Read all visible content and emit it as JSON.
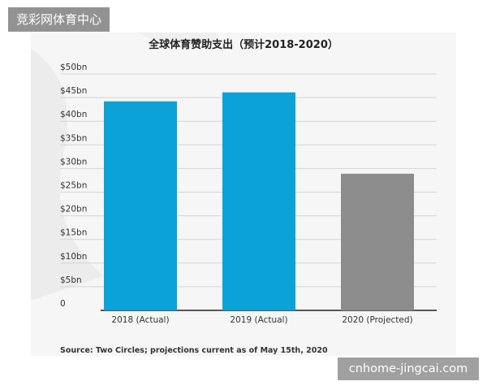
{
  "site_tag": "竞彩网体育中心",
  "watermark": "cnhome-jingcai.com",
  "chart_data": {
    "type": "bar",
    "title": "全球体育赞助支出（预计2018-2020）",
    "categories": [
      "2018 (Actual)",
      "2019 (Actual)",
      "2020 (Projected)"
    ],
    "values": [
      44.2,
      46.1,
      28.9
    ],
    "bar_colors": [
      "#0aa2d8",
      "#0aa2d8",
      "#8c8c8c"
    ],
    "y_ticks": [
      0,
      5,
      10,
      15,
      20,
      25,
      30,
      35,
      40,
      45,
      50
    ],
    "y_tick_labels": [
      "0",
      "$5bn",
      "$10bn",
      "$15bn",
      "$20bn",
      "$25bn",
      "$30bn",
      "$35bn",
      "$40bn",
      "$45bn",
      "$50bn"
    ],
    "ylim": [
      0,
      50
    ],
    "grid": true,
    "xlabel": "",
    "ylabel": "",
    "source": "Source: Two Circles; projections current as of May 15th, 2020"
  }
}
